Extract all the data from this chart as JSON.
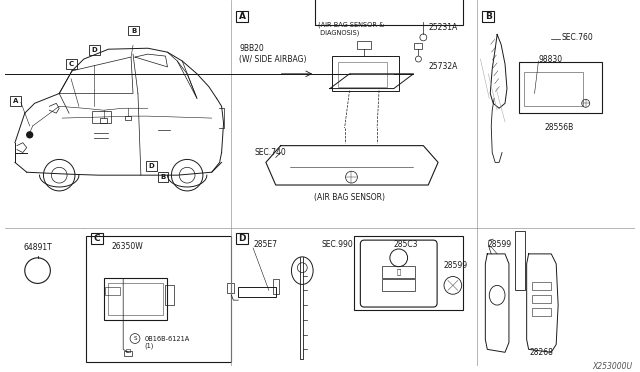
{
  "bg_color": "#ffffff",
  "line_color": "#1a1a1a",
  "fig_width": 6.4,
  "fig_height": 3.72,
  "dpi": 100,
  "watermark": "X253000U",
  "fs": 5.5,
  "fs_tiny": 4.8,
  "labels": {
    "A_box": "A",
    "B_box": "B",
    "C_box": "C",
    "D_box": "D",
    "part_98820": "9BB20\n(W/ SIDE AIRBAG)",
    "part_25231A": "25231A",
    "part_25732A": "25732A",
    "airbag_sensor_label": "(AIR BAG SENSOR &\n DIAGNOSIS)",
    "airbag_sensor_bottom": "(AIR BAG SENSOR)",
    "sec740": "SEC.740",
    "sec760": "SEC.760",
    "sec990": "SEC.990",
    "part_98830": "98830",
    "part_28556B": "28556B",
    "part_26350W": "26350W",
    "part_0B16B": "0B16B-6121A\n(1)",
    "part_285E7": "285E7",
    "part_285C3": "285C3",
    "part_28599_1": "28599",
    "part_28599_2": "28599",
    "part_28268": "28268",
    "part_64891T": "64891T"
  }
}
